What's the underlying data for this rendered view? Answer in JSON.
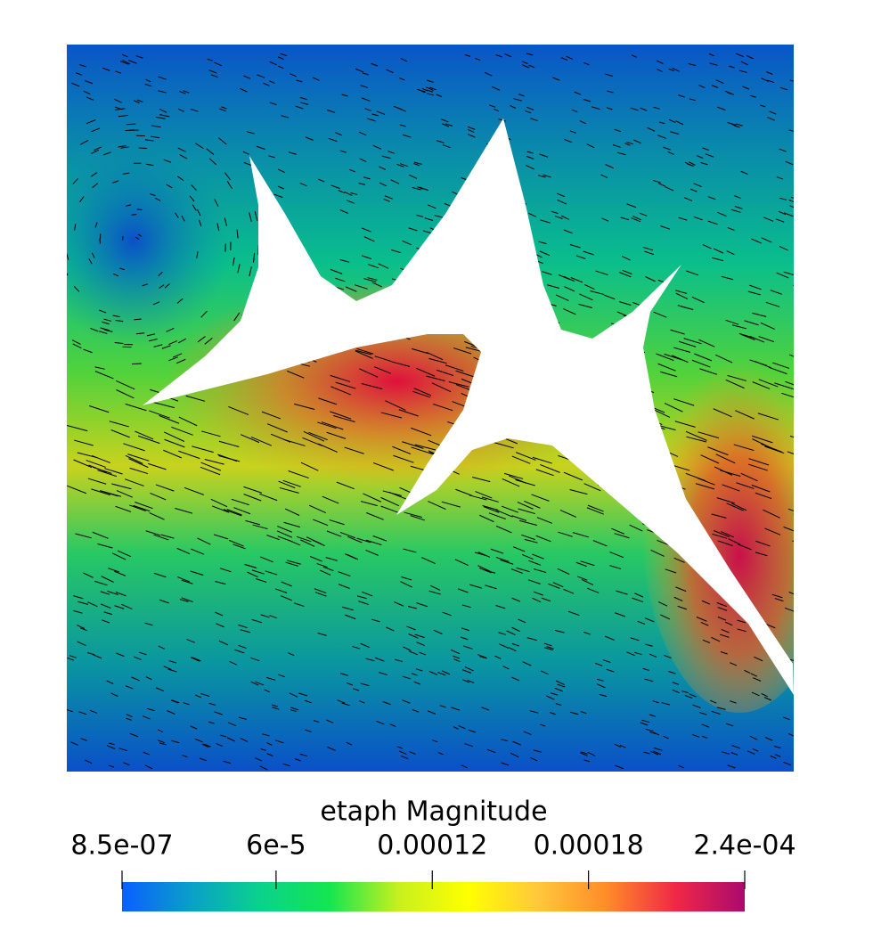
{
  "chart_data": {
    "type": "field",
    "title": "etaph Magnitude",
    "clim": [
      8.5e-07,
      0.00024
    ],
    "cticks": [
      {
        "value": 8.5e-07,
        "label": "8.5e-07"
      },
      {
        "value": 6e-05,
        "label": "6e-5"
      },
      0.00012,
      0.00018,
      {
        "value": 0.00024,
        "label": "2.4e-04"
      }
    ],
    "colormap": [
      "#0a5fff",
      "#0aa0c8",
      "#0ad28c",
      "#14e650",
      "#c8f01e",
      "#ffff00",
      "#ffc83c",
      "#ff8c28",
      "#f02846",
      "#aa0a6e"
    ]
  }
}
